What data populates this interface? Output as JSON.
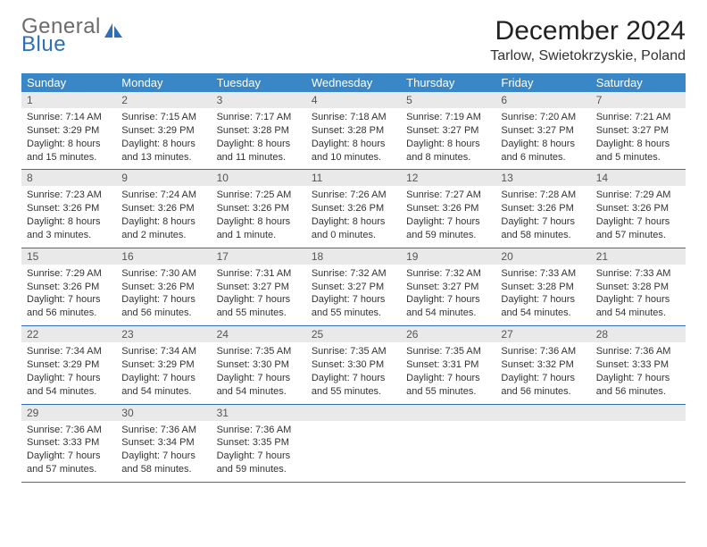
{
  "logo": {
    "word1": "General",
    "word2": "Blue"
  },
  "header": {
    "month_title": "December 2024",
    "location": "Tarlow, Swietokrzyskie, Poland"
  },
  "colors": {
    "header_bg": "#3a87c8",
    "header_text": "#ffffff",
    "daynum_bg": "#e9e9e9",
    "daynum_text": "#555555",
    "cell_text": "#333333",
    "row_border": "#2f6fb3",
    "logo_gray": "#6b6b6b",
    "logo_blue": "#2f6fb3",
    "page_bg": "#ffffff"
  },
  "layout": {
    "columns": 7,
    "rows": 5,
    "cell_font_size_pt": 8,
    "header_font_size_pt": 10
  },
  "weekdays": [
    "Sunday",
    "Monday",
    "Tuesday",
    "Wednesday",
    "Thursday",
    "Friday",
    "Saturday"
  ],
  "days": [
    {
      "n": "1",
      "sunrise": "Sunrise: 7:14 AM",
      "sunset": "Sunset: 3:29 PM",
      "daylight": "Daylight: 8 hours and 15 minutes."
    },
    {
      "n": "2",
      "sunrise": "Sunrise: 7:15 AM",
      "sunset": "Sunset: 3:29 PM",
      "daylight": "Daylight: 8 hours and 13 minutes."
    },
    {
      "n": "3",
      "sunrise": "Sunrise: 7:17 AM",
      "sunset": "Sunset: 3:28 PM",
      "daylight": "Daylight: 8 hours and 11 minutes."
    },
    {
      "n": "4",
      "sunrise": "Sunrise: 7:18 AM",
      "sunset": "Sunset: 3:28 PM",
      "daylight": "Daylight: 8 hours and 10 minutes."
    },
    {
      "n": "5",
      "sunrise": "Sunrise: 7:19 AM",
      "sunset": "Sunset: 3:27 PM",
      "daylight": "Daylight: 8 hours and 8 minutes."
    },
    {
      "n": "6",
      "sunrise": "Sunrise: 7:20 AM",
      "sunset": "Sunset: 3:27 PM",
      "daylight": "Daylight: 8 hours and 6 minutes."
    },
    {
      "n": "7",
      "sunrise": "Sunrise: 7:21 AM",
      "sunset": "Sunset: 3:27 PM",
      "daylight": "Daylight: 8 hours and 5 minutes."
    },
    {
      "n": "8",
      "sunrise": "Sunrise: 7:23 AM",
      "sunset": "Sunset: 3:26 PM",
      "daylight": "Daylight: 8 hours and 3 minutes."
    },
    {
      "n": "9",
      "sunrise": "Sunrise: 7:24 AM",
      "sunset": "Sunset: 3:26 PM",
      "daylight": "Daylight: 8 hours and 2 minutes."
    },
    {
      "n": "10",
      "sunrise": "Sunrise: 7:25 AM",
      "sunset": "Sunset: 3:26 PM",
      "daylight": "Daylight: 8 hours and 1 minute."
    },
    {
      "n": "11",
      "sunrise": "Sunrise: 7:26 AM",
      "sunset": "Sunset: 3:26 PM",
      "daylight": "Daylight: 8 hours and 0 minutes."
    },
    {
      "n": "12",
      "sunrise": "Sunrise: 7:27 AM",
      "sunset": "Sunset: 3:26 PM",
      "daylight": "Daylight: 7 hours and 59 minutes."
    },
    {
      "n": "13",
      "sunrise": "Sunrise: 7:28 AM",
      "sunset": "Sunset: 3:26 PM",
      "daylight": "Daylight: 7 hours and 58 minutes."
    },
    {
      "n": "14",
      "sunrise": "Sunrise: 7:29 AM",
      "sunset": "Sunset: 3:26 PM",
      "daylight": "Daylight: 7 hours and 57 minutes."
    },
    {
      "n": "15",
      "sunrise": "Sunrise: 7:29 AM",
      "sunset": "Sunset: 3:26 PM",
      "daylight": "Daylight: 7 hours and 56 minutes."
    },
    {
      "n": "16",
      "sunrise": "Sunrise: 7:30 AM",
      "sunset": "Sunset: 3:26 PM",
      "daylight": "Daylight: 7 hours and 56 minutes."
    },
    {
      "n": "17",
      "sunrise": "Sunrise: 7:31 AM",
      "sunset": "Sunset: 3:27 PM",
      "daylight": "Daylight: 7 hours and 55 minutes."
    },
    {
      "n": "18",
      "sunrise": "Sunrise: 7:32 AM",
      "sunset": "Sunset: 3:27 PM",
      "daylight": "Daylight: 7 hours and 55 minutes."
    },
    {
      "n": "19",
      "sunrise": "Sunrise: 7:32 AM",
      "sunset": "Sunset: 3:27 PM",
      "daylight": "Daylight: 7 hours and 54 minutes."
    },
    {
      "n": "20",
      "sunrise": "Sunrise: 7:33 AM",
      "sunset": "Sunset: 3:28 PM",
      "daylight": "Daylight: 7 hours and 54 minutes."
    },
    {
      "n": "21",
      "sunrise": "Sunrise: 7:33 AM",
      "sunset": "Sunset: 3:28 PM",
      "daylight": "Daylight: 7 hours and 54 minutes."
    },
    {
      "n": "22",
      "sunrise": "Sunrise: 7:34 AM",
      "sunset": "Sunset: 3:29 PM",
      "daylight": "Daylight: 7 hours and 54 minutes."
    },
    {
      "n": "23",
      "sunrise": "Sunrise: 7:34 AM",
      "sunset": "Sunset: 3:29 PM",
      "daylight": "Daylight: 7 hours and 54 minutes."
    },
    {
      "n": "24",
      "sunrise": "Sunrise: 7:35 AM",
      "sunset": "Sunset: 3:30 PM",
      "daylight": "Daylight: 7 hours and 54 minutes."
    },
    {
      "n": "25",
      "sunrise": "Sunrise: 7:35 AM",
      "sunset": "Sunset: 3:30 PM",
      "daylight": "Daylight: 7 hours and 55 minutes."
    },
    {
      "n": "26",
      "sunrise": "Sunrise: 7:35 AM",
      "sunset": "Sunset: 3:31 PM",
      "daylight": "Daylight: 7 hours and 55 minutes."
    },
    {
      "n": "27",
      "sunrise": "Sunrise: 7:36 AM",
      "sunset": "Sunset: 3:32 PM",
      "daylight": "Daylight: 7 hours and 56 minutes."
    },
    {
      "n": "28",
      "sunrise": "Sunrise: 7:36 AM",
      "sunset": "Sunset: 3:33 PM",
      "daylight": "Daylight: 7 hours and 56 minutes."
    },
    {
      "n": "29",
      "sunrise": "Sunrise: 7:36 AM",
      "sunset": "Sunset: 3:33 PM",
      "daylight": "Daylight: 7 hours and 57 minutes."
    },
    {
      "n": "30",
      "sunrise": "Sunrise: 7:36 AM",
      "sunset": "Sunset: 3:34 PM",
      "daylight": "Daylight: 7 hours and 58 minutes."
    },
    {
      "n": "31",
      "sunrise": "Sunrise: 7:36 AM",
      "sunset": "Sunset: 3:35 PM",
      "daylight": "Daylight: 7 hours and 59 minutes."
    }
  ]
}
